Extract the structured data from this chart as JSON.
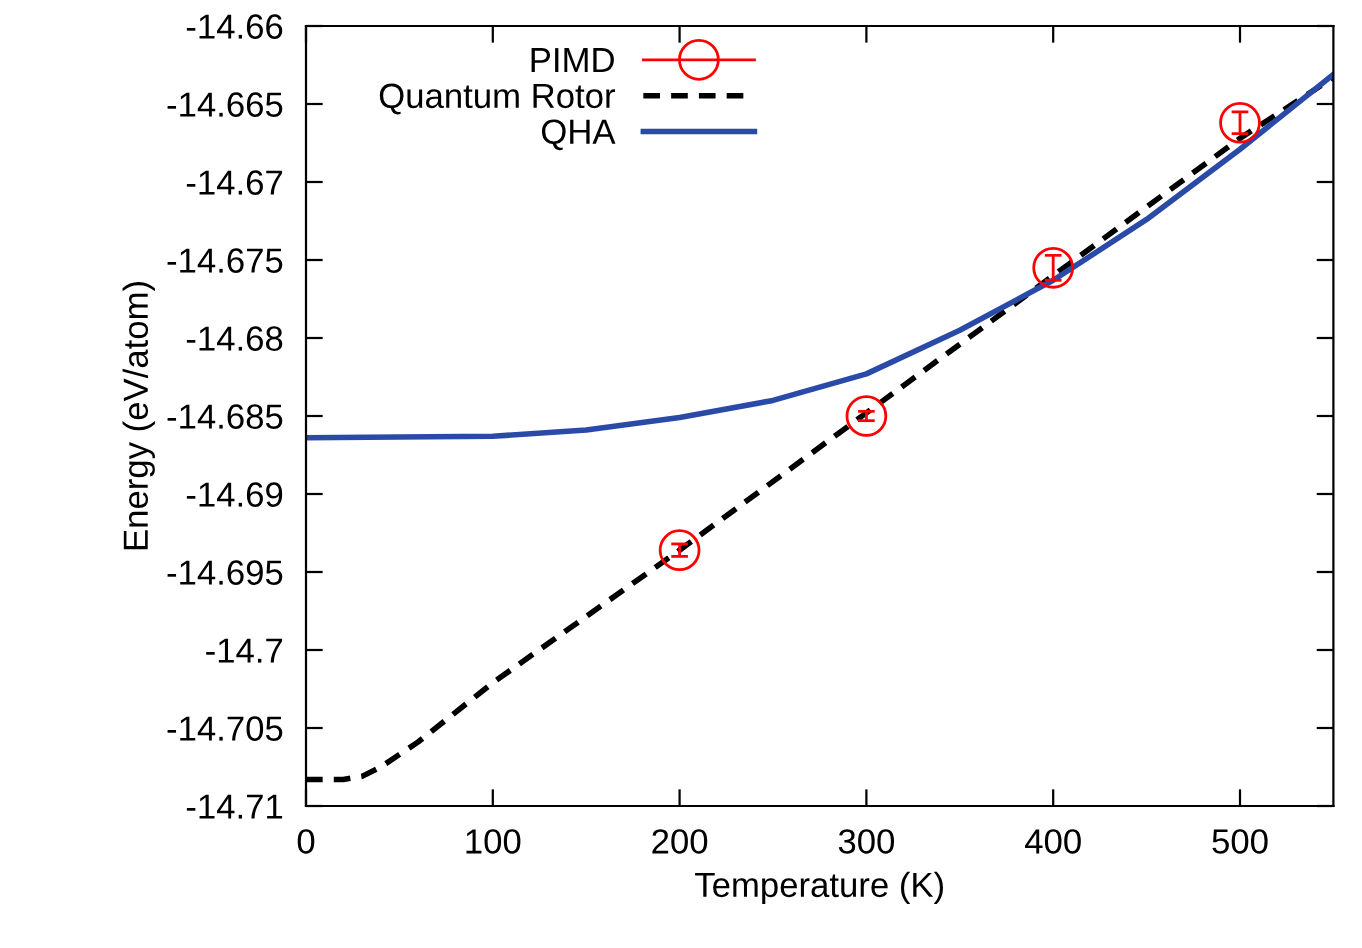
{
  "chart_data": {
    "type": "line",
    "xlabel": "Temperature (K)",
    "ylabel": "Energy (eV/atom)",
    "xlim": [
      0,
      550
    ],
    "xticks": [
      0,
      100,
      200,
      300,
      400,
      500
    ],
    "ylim": [
      -14.71,
      -14.66
    ],
    "yticks": [
      {
        "value": -14.71,
        "label": "-14.71"
      },
      {
        "value": -14.705,
        "label": "-14.705"
      },
      {
        "value": -14.7,
        "label": "-14.7"
      },
      {
        "value": -14.695,
        "label": "-14.695"
      },
      {
        "value": -14.69,
        "label": "-14.69"
      },
      {
        "value": -14.685,
        "label": "-14.685"
      },
      {
        "value": -14.68,
        "label": "-14.68"
      },
      {
        "value": -14.675,
        "label": "-14.675"
      },
      {
        "value": -14.67,
        "label": "-14.67"
      },
      {
        "value": -14.665,
        "label": "-14.665"
      },
      {
        "value": -14.66,
        "label": "-14.66"
      }
    ],
    "legend": "top left",
    "grid": false,
    "series": [
      {
        "name": "PIMD",
        "type": "scatter",
        "color": "#ff0000",
        "marker": "circle",
        "x": [
          200,
          300,
          400,
          500
        ],
        "values": [
          -14.6936,
          -14.685,
          -14.6755,
          -14.6662
        ],
        "errors": [
          0.0004,
          0.0003,
          0.0008,
          0.0007
        ]
      },
      {
        "name": "Quantum Rotor",
        "color": "#000000",
        "line_style": "dashed",
        "x": [
          0,
          20,
          30,
          40,
          50,
          60,
          100,
          200,
          300,
          400,
          500,
          550
        ],
        "values": [
          -14.7083,
          -14.7083,
          -14.7081,
          -14.7075,
          -14.7067,
          -14.7059,
          -14.7021,
          -14.6936,
          -14.6848,
          -14.676,
          -14.6672,
          -14.6633
        ]
      },
      {
        "name": "QHA",
        "color": "#2a4aa8",
        "line_style": "solid",
        "x": [
          0,
          100,
          150,
          200,
          250,
          300,
          350,
          400,
          450,
          500,
          550
        ],
        "values": [
          -14.6864,
          -14.6863,
          -14.6859,
          -14.6851,
          -14.684,
          -14.6823,
          -14.6795,
          -14.6763,
          -14.6724,
          -14.6679,
          -14.6631
        ]
      }
    ]
  }
}
